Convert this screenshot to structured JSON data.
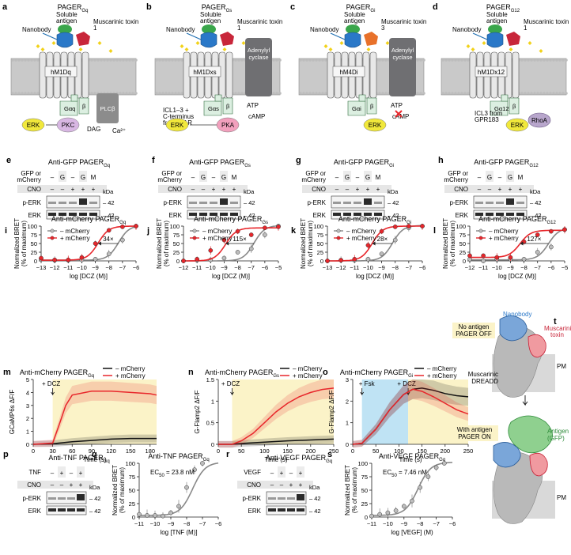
{
  "figure": {
    "panel_letters": [
      "a",
      "b",
      "c",
      "d",
      "e",
      "f",
      "g",
      "h",
      "i",
      "j",
      "k",
      "l",
      "m",
      "n",
      "o",
      "p",
      "q",
      "r",
      "s",
      "t"
    ],
    "schematics": [
      {
        "title": "PAGER",
        "sub": "Gq",
        "receptor": "hM1Dq",
        "toxin": "Muscarinic toxin 1",
        "antigen": "Soluble antigen",
        "nanobody": "Nanobody",
        "effector": "PLCβ",
        "extra": [
          "DAG",
          "Ca²⁺"
        ],
        "nodes": [
          "ERK",
          "PKC"
        ],
        "galpha": "Gαq"
      },
      {
        "title": "PAGER",
        "sub": "Gs",
        "receptor": "hM1Dxs",
        "toxin": "Muscarinic toxin 1",
        "antigen": "Soluble antigen",
        "nanobody": "Nanobody",
        "effector": "Adenylyl cyclase",
        "extra": [
          "ATP",
          "cAMP",
          "ICL1–3 +",
          "C-terminus",
          "from β₂AR"
        ],
        "nodes": [
          "ERK",
          "PKA"
        ],
        "galpha": "Gαs"
      },
      {
        "title": "PAGER",
        "sub": "Gi",
        "receptor": "hM4Di",
        "toxin": "Muscarinic toxin 3",
        "antigen": "Soluble antigen",
        "nanobody": "Nanobody",
        "effector": "Adenylyl cyclase",
        "extra": [
          "ATP",
          "cAMP"
        ],
        "nodes": [
          "ERK"
        ],
        "galpha": "Gαi"
      },
      {
        "title": "PAGER",
        "sub": "G12",
        "receptor": "hM1Dx12",
        "toxin": "Muscarinic toxin 1",
        "antigen": "Soluble antigen",
        "nanobody": "Nanobody",
        "effector": "RhoA",
        "extra": [
          "ICL3 from",
          "GPR183"
        ],
        "nodes": [
          "ERK"
        ],
        "galpha": "Gα12"
      }
    ],
    "blots": [
      {
        "title": "Anti-GFP PAGER",
        "sub": "Gq",
        "row1_label": "GFP or",
        "row1_label2": "mCherry",
        "cols1": [
          "–",
          "G",
          "–",
          "G",
          "M"
        ],
        "row2_label": "CNO",
        "cols2": [
          "–",
          "–",
          "+",
          "+",
          "+"
        ],
        "bands": [
          "p-ERK",
          "ERK"
        ],
        "kda": "kDa",
        "mw": [
          "42",
          "42"
        ]
      },
      {
        "title": "Anti-GFP PAGER",
        "sub": "Gs",
        "row1_label": "GFP or",
        "row1_label2": "mCherry",
        "cols1": [
          "–",
          "G",
          "–",
          "G",
          "M"
        ],
        "row2_label": "CNO",
        "cols2": [
          "–",
          "–",
          "+",
          "+",
          "+"
        ],
        "bands": [
          "p-ERK",
          "ERK"
        ],
        "kda": "kDa",
        "mw": [
          "42",
          "42"
        ]
      },
      {
        "title": "Anti-GFP PAGER",
        "sub": "Gi",
        "row1_label": "GFP or",
        "row1_label2": "mCherry",
        "cols1": [
          "–",
          "G",
          "–",
          "G",
          "M"
        ],
        "row2_label": "CNO",
        "cols2": [
          "–",
          "–",
          "+",
          "+",
          "+"
        ],
        "bands": [
          "p-ERK",
          "ERK"
        ],
        "kda": "kDa",
        "mw": [
          "42",
          "42"
        ]
      },
      {
        "title": "Anti-GFP PAGER",
        "sub": "G12",
        "row1_label": "GFP or",
        "row1_label2": "mCherry",
        "cols1": [
          "–",
          "G",
          "–",
          "G",
          "M"
        ],
        "row2_label": "CNO",
        "cols2": [
          "–",
          "–",
          "+",
          "+",
          "+"
        ],
        "bands": [
          "p-ERK",
          "ERK"
        ],
        "kda": "kDa",
        "mw": [
          "42",
          "42"
        ]
      }
    ],
    "t_labels": {
      "nanobody": "Nanobody",
      "toxin": "Muscarinic",
      "toxin2": "toxin",
      "off1": "No antigen",
      "off2": "PAGER OFF",
      "pm": "PM",
      "dreadd1": "Muscarinic",
      "dreadd2": "DREADD",
      "on1": "With antigen",
      "on2": "PAGER ON",
      "antigen1": "Antigen",
      "antigen2": "(GFP)"
    },
    "blot_pq": [
      {
        "title": "Anti-TNF PAGER",
        "sub": "Gq",
        "row1_label": "TNF",
        "cols1": [
          "–",
          "+",
          "–",
          "+"
        ],
        "row2_label": "CNO",
        "cols2": [
          "–",
          "–",
          "+",
          "+"
        ],
        "bands": [
          "p-ERK",
          "ERK"
        ],
        "kda": "kDa",
        "mw": [
          "42",
          "42"
        ]
      },
      {
        "title": "Anti-VEGF PAGER",
        "sub": "Gq",
        "row1_label": "VEGF",
        "cols1": [
          "–",
          "+",
          "–",
          "+"
        ],
        "row2_label": "CNO",
        "cols2": [
          "–",
          "–",
          "+",
          "+"
        ],
        "bands": [
          "p-ERK",
          "ERK"
        ],
        "kda": "kDa",
        "mw": [
          "42",
          "42"
        ]
      }
    ]
  },
  "chart_data": [
    {
      "panel": "i",
      "type": "scatter",
      "title": "Anti-mCherry PAGER",
      "sub": "Gq",
      "xlabel": "log [DCZ (M)]",
      "ylabel": "Normalized BRET",
      "ylabel2": "(% of maximum)",
      "xlim": [
        -13,
        -6
      ],
      "ylim": [
        0,
        100
      ],
      "xticks": [
        -13,
        -12,
        -11,
        -10,
        -9,
        -8,
        -7,
        -6
      ],
      "yticks": [
        0,
        25,
        50,
        75,
        100
      ],
      "fold": "34×",
      "series": [
        {
          "name": "– mCherry",
          "color": "#888888",
          "x": [
            -13,
            -12,
            -11,
            -10,
            -9,
            -8,
            -7,
            -6
          ],
          "y": [
            5,
            2,
            2,
            3,
            5,
            20,
            60,
            100
          ],
          "ec50": -7.3,
          "bottom": 2,
          "top": 102
        },
        {
          "name": "+ mCherry",
          "color": "#e8262b",
          "x": [
            -13,
            -12,
            -11,
            -10,
            -9,
            -8,
            -7,
            -6
          ],
          "y": [
            8,
            3,
            3,
            10,
            50,
            88,
            98,
            100
          ],
          "ec50": -8.8,
          "bottom": 2,
          "top": 100
        }
      ]
    },
    {
      "panel": "j",
      "type": "scatter",
      "title": "Anti-mCherry PAGER",
      "sub": "Gs",
      "xlabel": "log [DCZ (M)]",
      "ylabel": "Normalized BRET",
      "ylabel2": "(% of maximum)",
      "xlim": [
        -12,
        -5
      ],
      "ylim": [
        0,
        100
      ],
      "xticks": [
        -12,
        -11,
        -10,
        -9,
        -8,
        -7,
        -6,
        -5
      ],
      "yticks": [
        0,
        25,
        50,
        75,
        100
      ],
      "fold": "115×",
      "series": [
        {
          "name": "– mCherry",
          "color": "#888888",
          "x": [
            -12,
            -11,
            -10,
            -9,
            -8,
            -7,
            -6,
            -5
          ],
          "y": [
            0,
            2,
            3,
            8,
            25,
            35,
            75,
            100
          ],
          "ec50": -6.8,
          "bottom": 0,
          "top": 102
        },
        {
          "name": "+ mCherry",
          "color": "#e8262b",
          "x": [
            -12,
            -11,
            -10,
            -9,
            -8,
            -7,
            -6,
            -5
          ],
          "y": [
            0,
            5,
            30,
            60,
            85,
            75,
            95,
            98
          ],
          "ec50": -8.9,
          "bottom": 0,
          "top": 95
        }
      ]
    },
    {
      "panel": "k",
      "type": "scatter",
      "title": "Anti-mCherry PAGER",
      "sub": "Gi",
      "xlabel": "log [DCZ (M)]",
      "ylabel": "Normalized BRET",
      "ylabel2": "(% of maximum)",
      "xlim": [
        -13,
        -6
      ],
      "ylim": [
        0,
        100
      ],
      "xticks": [
        -13,
        -12,
        -11,
        -10,
        -9,
        -8,
        -7,
        -6
      ],
      "yticks": [
        0,
        25,
        50,
        75,
        100
      ],
      "fold": "28×",
      "series": [
        {
          "name": "– mCherry",
          "color": "#888888",
          "x": [
            -13,
            -12,
            -11,
            -10,
            -9,
            -8,
            -7,
            -6
          ],
          "y": [
            0,
            2,
            2,
            5,
            20,
            60,
            95,
            100
          ],
          "ec50": -8.2,
          "bottom": 0,
          "top": 102
        },
        {
          "name": "+ mCherry",
          "color": "#e8262b",
          "x": [
            -13,
            -12,
            -11,
            -10,
            -9,
            -8,
            -7,
            -6
          ],
          "y": [
            0,
            2,
            5,
            45,
            85,
            98,
            100,
            100
          ],
          "ec50": -9.7,
          "bottom": 0,
          "top": 100
        }
      ]
    },
    {
      "panel": "l",
      "type": "scatter",
      "title": "Anti-mCherry PAGER",
      "sub": "G12",
      "xlabel": "log [DCZ (M)]",
      "ylabel": "Normalized BRET",
      "ylabel2": "(% of maximum)",
      "xlim": [
        -12,
        -5
      ],
      "ylim": [
        0,
        100
      ],
      "xticks": [
        -12,
        -11,
        -10,
        -9,
        -8,
        -7,
        -6,
        -5
      ],
      "yticks": [
        0,
        25,
        50,
        75,
        100
      ],
      "fold": "127×",
      "series": [
        {
          "name": "– mCherry",
          "color": "#888888",
          "x": [
            -12,
            -11,
            -10,
            -9,
            -8,
            -7,
            -6,
            -5
          ],
          "y": [
            5,
            0,
            5,
            5,
            5,
            25,
            40,
            90
          ],
          "ec50": -6.2,
          "bottom": 3,
          "top": 95
        },
        {
          "name": "+ mCherry",
          "color": "#e8262b",
          "x": [
            -12,
            -11,
            -10,
            -9,
            -8,
            -7,
            -6,
            -5
          ],
          "y": [
            15,
            15,
            10,
            10,
            55,
            75,
            85,
            90
          ],
          "ec50": -8.3,
          "bottom": 10,
          "top": 88
        }
      ]
    },
    {
      "panel": "m",
      "type": "line",
      "title": "Anti-mCherry PAGER",
      "sub": "Gq",
      "xlabel": "Time (s)",
      "ylabel": "GCaMP6s ΔF/F",
      "xlim": [
        0,
        190
      ],
      "ylim": [
        0,
        5
      ],
      "xticks": [
        0,
        30,
        60,
        90,
        120,
        150,
        180
      ],
      "yticks": [
        0,
        1,
        2,
        3,
        4,
        5
      ],
      "annotation": "+ DCZ",
      "stim": 30,
      "series": [
        {
          "name": "– mCherry",
          "color": "#111111",
          "x": [
            0,
            30,
            60,
            90,
            120,
            150,
            180,
            190
          ],
          "y": [
            0,
            0.05,
            0.2,
            0.3,
            0.4,
            0.45,
            0.45,
            0.45
          ]
        },
        {
          "name": "+ mCherry",
          "color": "#e8262b",
          "x": [
            0,
            30,
            40,
            50,
            60,
            90,
            120,
            150,
            180,
            190
          ],
          "y": [
            0,
            0.1,
            1.5,
            3.0,
            3.8,
            4.1,
            4.1,
            4.0,
            3.9,
            3.8
          ]
        }
      ]
    },
    {
      "panel": "n",
      "type": "line",
      "title": "Anti-mCherry PAGER",
      "sub": "Gs",
      "xlabel": "Time (s)",
      "ylabel": "G-Flamp2 ΔF/F",
      "xlim": [
        0,
        250
      ],
      "ylim": [
        0,
        1.5
      ],
      "xticks": [
        0,
        50,
        100,
        150,
        200,
        250
      ],
      "yticks": [
        0,
        0.5,
        1.0,
        1.5
      ],
      "annotation": "+ DCZ",
      "stim": 30,
      "series": [
        {
          "name": "– mCherry",
          "color": "#111111",
          "x": [
            0,
            30,
            50,
            100,
            150,
            200,
            250
          ],
          "y": [
            0,
            0,
            0.02,
            0.05,
            0.08,
            0.1,
            0.12
          ]
        },
        {
          "name": "+ mCherry",
          "color": "#e8262b",
          "x": [
            0,
            30,
            50,
            75,
            100,
            125,
            150,
            175,
            200,
            225,
            250
          ],
          "y": [
            0,
            0,
            0.08,
            0.25,
            0.5,
            0.75,
            0.95,
            1.1,
            1.2,
            1.27,
            1.3
          ]
        }
      ]
    },
    {
      "panel": "o",
      "type": "line",
      "title": "Anti-mCherry PAGER",
      "sub": "Gi",
      "xlabel": "Time (s)",
      "ylabel": "G-Flamp2 ΔF/F",
      "xlim": [
        0,
        250
      ],
      "ylim": [
        0,
        3
      ],
      "xticks": [
        0,
        50,
        100,
        150,
        200,
        250
      ],
      "yticks": [
        0,
        1,
        2,
        3
      ],
      "annotation": "+ DCZ",
      "annotation2": "+ Fsk",
      "stim": 120,
      "stim2": 20,
      "series": [
        {
          "name": "– mCherry",
          "color": "#111111",
          "x": [
            0,
            20,
            50,
            80,
            110,
            130,
            150,
            175,
            200,
            225,
            250
          ],
          "y": [
            0,
            0.05,
            0.7,
            1.6,
            2.3,
            2.55,
            2.6,
            2.5,
            2.35,
            2.25,
            2.2
          ]
        },
        {
          "name": "+ mCherry",
          "color": "#e8262b",
          "x": [
            0,
            20,
            50,
            80,
            110,
            130,
            150,
            175,
            200,
            225,
            250
          ],
          "y": [
            0,
            0.05,
            0.7,
            1.6,
            2.3,
            2.55,
            2.45,
            2.2,
            1.9,
            1.6,
            1.4
          ]
        }
      ]
    },
    {
      "panel": "q",
      "type": "scatter",
      "title": "Anti-TNF PAGER",
      "sub": "Gq",
      "xlabel": "log [TNF (M)]",
      "ylabel": "Normalized BRET",
      "ylabel2": "(% of maximum)",
      "xlim": [
        -11,
        -6
      ],
      "ylim": [
        0,
        100
      ],
      "xticks": [
        -11,
        -10,
        -9,
        -8,
        -7,
        -6
      ],
      "yticks": [
        0,
        25,
        50,
        75,
        100
      ],
      "ec50_label": "EC",
      "ec50_sub": "50",
      "ec50_value": " = 23.8 nM",
      "series": [
        {
          "name": "TNF",
          "color": "#888888",
          "x": [
            -11,
            -10.5,
            -10,
            -9.5,
            -9,
            -8.5,
            -8,
            -7.5,
            -7
          ],
          "y": [
            5,
            3,
            3,
            2,
            8,
            20,
            55,
            88,
            100
          ],
          "ec50": -7.62,
          "bottom": 3,
          "top": 102
        }
      ]
    },
    {
      "panel": "s",
      "type": "scatter",
      "title": "Anti-VEGF PAGER",
      "sub": "Gq",
      "xlabel": "log [VEGF] (M)",
      "ylabel": "Normalized BRET",
      "ylabel2": "(% of maximum)",
      "xlim": [
        -11,
        -6
      ],
      "ylim": [
        0,
        100
      ],
      "xticks": [
        -11,
        -10,
        -9,
        -8,
        -7,
        -6
      ],
      "yticks": [
        0,
        25,
        50,
        75,
        100
      ],
      "ec50_label": "EC",
      "ec50_sub": "50",
      "ec50_value": " = 7.46 nM",
      "series": [
        {
          "name": "VEGF",
          "color": "#888888",
          "x": [
            -11,
            -10.5,
            -10,
            -9.5,
            -9,
            -8.5,
            -8,
            -7.5,
            -7,
            -6.5
          ],
          "y": [
            2,
            5,
            8,
            12,
            20,
            30,
            55,
            75,
            92,
            100
          ],
          "ec50": -8.13,
          "bottom": 3,
          "top": 102
        }
      ]
    }
  ]
}
